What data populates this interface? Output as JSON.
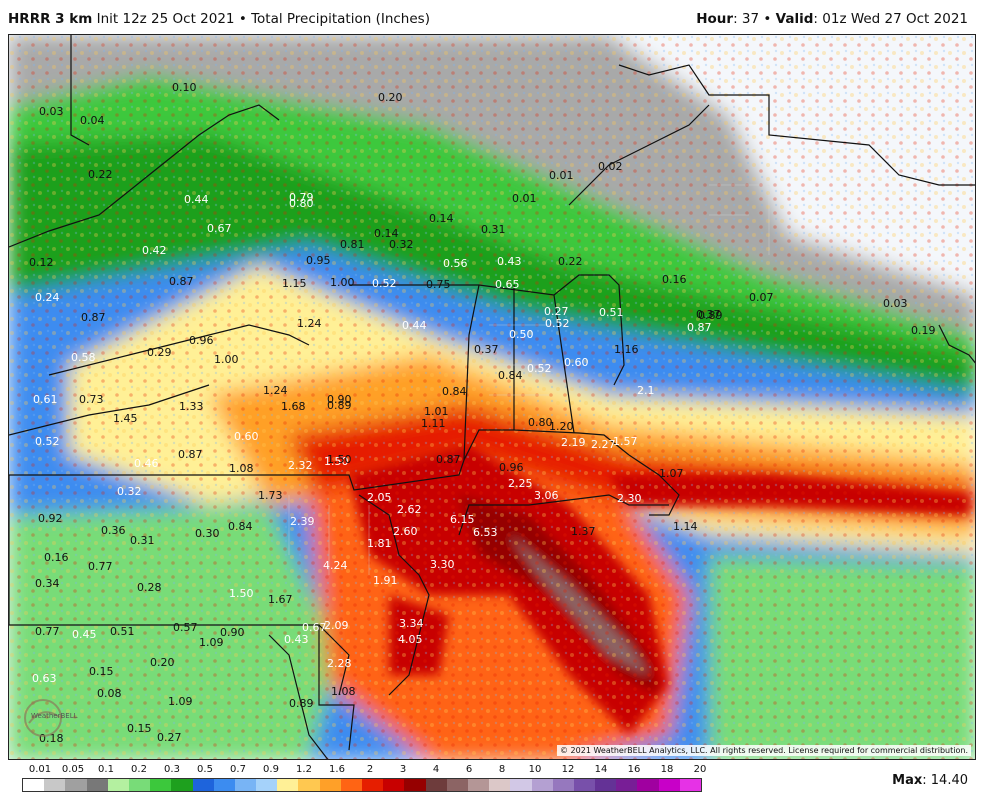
{
  "header": {
    "model": "HRRR 3 km",
    "init": "Init 12z 25 Oct 2021",
    "bullet": "•",
    "product": "Total Precipitation (Inches)",
    "hour_label": "Hour",
    "hour_value": ": 37",
    "valid_label": "Valid",
    "valid_value": ": 01z Wed 27 Oct 2021"
  },
  "copyright": "© 2021 WeatherBELL Analytics, LLC. All rights reserved. License required for commercial distribution.",
  "logo_text": "WeatherBELL",
  "legend": {
    "labels": [
      "0.01",
      "0.05",
      "0.1",
      "0.2",
      "0.3",
      "0.5",
      "0.7",
      "0.9",
      "1.2",
      "1.6",
      "2",
      "3",
      "4",
      "6",
      "8",
      "10",
      "12",
      "14",
      "16",
      "18",
      "20"
    ],
    "colors": [
      "#ffffff",
      "#c8c8c8",
      "#a0a0a0",
      "#787878",
      "#b4f0a0",
      "#78dc78",
      "#3cc83c",
      "#1ea01e",
      "#1e64dc",
      "#3c8cf0",
      "#78b4f5",
      "#a5d2fa",
      "#fff096",
      "#ffc850",
      "#ffa028",
      "#ff6414",
      "#e61e00",
      "#c80000",
      "#960000",
      "#6e3c3c",
      "#8c6464",
      "#b49696",
      "#dcc8c8",
      "#d2c8e6",
      "#b4a0d2",
      "#9678be",
      "#7850aa",
      "#643296",
      "#781e96",
      "#a000a0",
      "#c800c8",
      "#e632e6"
    ]
  },
  "max": {
    "label": "Max",
    "value": ": 14.40"
  },
  "map_labels": [
    {
      "t": "0.10",
      "c": "dark"
    },
    {
      "t": "0.20",
      "c": "dark"
    },
    {
      "t": "0.03",
      "c": "dark"
    },
    {
      "t": "0.04",
      "c": "dark"
    },
    {
      "t": "0.22",
      "c": "dark"
    },
    {
      "t": "0.44",
      "c": "light"
    },
    {
      "t": "0.79",
      "c": "light"
    },
    {
      "t": "0.80",
      "c": "light"
    },
    {
      "t": "0.01",
      "c": "dark"
    },
    {
      "t": "0.02",
      "c": "dark"
    },
    {
      "t": "0.01",
      "c": "dark"
    },
    {
      "t": "0.14",
      "c": "dark"
    },
    {
      "t": "0.31",
      "c": "dark"
    },
    {
      "t": "0.14",
      "c": "dark"
    },
    {
      "t": "0.32",
      "c": "dark"
    },
    {
      "t": "0.81",
      "c": "dark"
    },
    {
      "t": "0.67",
      "c": "light"
    },
    {
      "t": "0.42",
      "c": "light"
    },
    {
      "t": "0.95",
      "c": "dark"
    },
    {
      "t": "0.56",
      "c": "light"
    },
    {
      "t": "0.43",
      "c": "light"
    },
    {
      "t": "0.22",
      "c": "dark"
    },
    {
      "t": "0.12",
      "c": "dark"
    },
    {
      "t": "0.87",
      "c": "dark"
    },
    {
      "t": "1.15",
      "c": "dark"
    },
    {
      "t": "1.00",
      "c": "dark"
    },
    {
      "t": "0.52",
      "c": "light"
    },
    {
      "t": "0.75",
      "c": "dark"
    },
    {
      "t": "0.65",
      "c": "light"
    },
    {
      "t": "0.16",
      "c": "dark"
    },
    {
      "t": "0.07",
      "c": "dark"
    },
    {
      "t": "0.03",
      "c": "dark"
    },
    {
      "t": "0.24",
      "c": "light"
    },
    {
      "t": "0.87",
      "c": "dark"
    },
    {
      "t": "0.89",
      "c": "dark"
    },
    {
      "t": "1.24",
      "c": "dark"
    },
    {
      "t": "0.44",
      "c": "light"
    },
    {
      "t": "0.27",
      "c": "light"
    },
    {
      "t": "0.52",
      "c": "light"
    },
    {
      "t": "0.51",
      "c": "light"
    },
    {
      "t": "0.37",
      "c": "dark"
    },
    {
      "t": "0.87",
      "c": "light"
    },
    {
      "t": "0.19",
      "c": "dark"
    },
    {
      "t": "0.58",
      "c": "light"
    },
    {
      "t": "0.29",
      "c": "dark"
    },
    {
      "t": "0.96",
      "c": "dark"
    },
    {
      "t": "1.00",
      "c": "dark"
    },
    {
      "t": "0.37",
      "c": "dark"
    },
    {
      "t": "0.50",
      "c": "light"
    },
    {
      "t": "0.60",
      "c": "light"
    },
    {
      "t": "1.16",
      "c": "dark"
    },
    {
      "t": "0.52",
      "c": "light"
    },
    {
      "t": "0.61",
      "c": "light"
    },
    {
      "t": "0.73",
      "c": "dark"
    },
    {
      "t": "1.24",
      "c": "dark"
    },
    {
      "t": "0.90",
      "c": "dark"
    },
    {
      "t": "0.89",
      "c": "dark"
    },
    {
      "t": "0.84",
      "c": "dark"
    },
    {
      "t": "0.84",
      "c": "dark"
    },
    {
      "t": "1.33",
      "c": "dark"
    },
    {
      "t": "1.45",
      "c": "dark"
    },
    {
      "t": "1.68",
      "c": "dark"
    },
    {
      "t": "1.01",
      "c": "dark"
    },
    {
      "t": "0.60",
      "c": "light"
    },
    {
      "t": "1.11",
      "c": "dark"
    },
    {
      "t": "0.80",
      "c": "dark"
    },
    {
      "t": "1.20",
      "c": "dark"
    },
    {
      "t": "2.1",
      "c": "light"
    },
    {
      "t": "0.52",
      "c": "light"
    },
    {
      "t": "1.50",
      "c": "light"
    },
    {
      "t": "2.19",
      "c": "light"
    },
    {
      "t": "2.27",
      "c": "light"
    },
    {
      "t": "1.57",
      "c": "light"
    },
    {
      "t": "0.46",
      "c": "light"
    },
    {
      "t": "0.87",
      "c": "dark"
    },
    {
      "t": "1.08",
      "c": "dark"
    },
    {
      "t": "2.32",
      "c": "light"
    },
    {
      "t": "1.50",
      "c": "dark"
    },
    {
      "t": "0.87",
      "c": "dark"
    },
    {
      "t": "0.96",
      "c": "dark"
    },
    {
      "t": "1.07",
      "c": "dark"
    },
    {
      "t": "2.25",
      "c": "light"
    },
    {
      "t": "0.32",
      "c": "light"
    },
    {
      "t": "1.73",
      "c": "dark"
    },
    {
      "t": "2.05",
      "c": "light"
    },
    {
      "t": "3.06",
      "c": "light"
    },
    {
      "t": "2.30",
      "c": "light"
    },
    {
      "t": "0.92",
      "c": "dark"
    },
    {
      "t": "0.36",
      "c": "dark"
    },
    {
      "t": "2.62",
      "c": "light"
    },
    {
      "t": "6.15",
      "c": "light"
    },
    {
      "t": "1.14",
      "c": "dark"
    },
    {
      "t": "0.30",
      "c": "dark"
    },
    {
      "t": "0.84",
      "c": "dark"
    },
    {
      "t": "2.39",
      "c": "light"
    },
    {
      "t": "6.53",
      "c": "light"
    },
    {
      "t": "1.37",
      "c": "dark"
    },
    {
      "t": "0.31",
      "c": "dark"
    },
    {
      "t": "2.60",
      "c": "light"
    },
    {
      "t": "0.16",
      "c": "dark"
    },
    {
      "t": "1.81",
      "c": "light"
    },
    {
      "t": "0.77",
      "c": "dark"
    },
    {
      "t": "4.24",
      "c": "light"
    },
    {
      "t": "3.30",
      "c": "light"
    },
    {
      "t": "0.34",
      "c": "dark"
    },
    {
      "t": "0.28",
      "c": "dark"
    },
    {
      "t": "1.91",
      "c": "light"
    },
    {
      "t": "1.50",
      "c": "light"
    },
    {
      "t": "1.67",
      "c": "dark"
    },
    {
      "t": "0.77",
      "c": "dark"
    },
    {
      "t": "0.45",
      "c": "light"
    },
    {
      "t": "0.51",
      "c": "dark"
    },
    {
      "t": "0.57",
      "c": "dark"
    },
    {
      "t": "1.09",
      "c": "dark"
    },
    {
      "t": "0.90",
      "c": "dark"
    },
    {
      "t": "0.43",
      "c": "light"
    },
    {
      "t": "0.67",
      "c": "light"
    },
    {
      "t": "2.09",
      "c": "light"
    },
    {
      "t": "3.34",
      "c": "light"
    },
    {
      "t": "0.15",
      "c": "dark"
    },
    {
      "t": "0.20",
      "c": "dark"
    },
    {
      "t": "4.05",
      "c": "light"
    },
    {
      "t": "2.28",
      "c": "light"
    },
    {
      "t": "0.63",
      "c": "light"
    },
    {
      "t": "0.08",
      "c": "dark"
    },
    {
      "t": "1.09",
      "c": "dark"
    },
    {
      "t": "1.08",
      "c": "dark"
    },
    {
      "t": "0.89",
      "c": "dark"
    },
    {
      "t": "0.15",
      "c": "dark"
    },
    {
      "t": "0.27",
      "c": "dark"
    },
    {
      "t": "0.18",
      "c": "dark"
    }
  ]
}
